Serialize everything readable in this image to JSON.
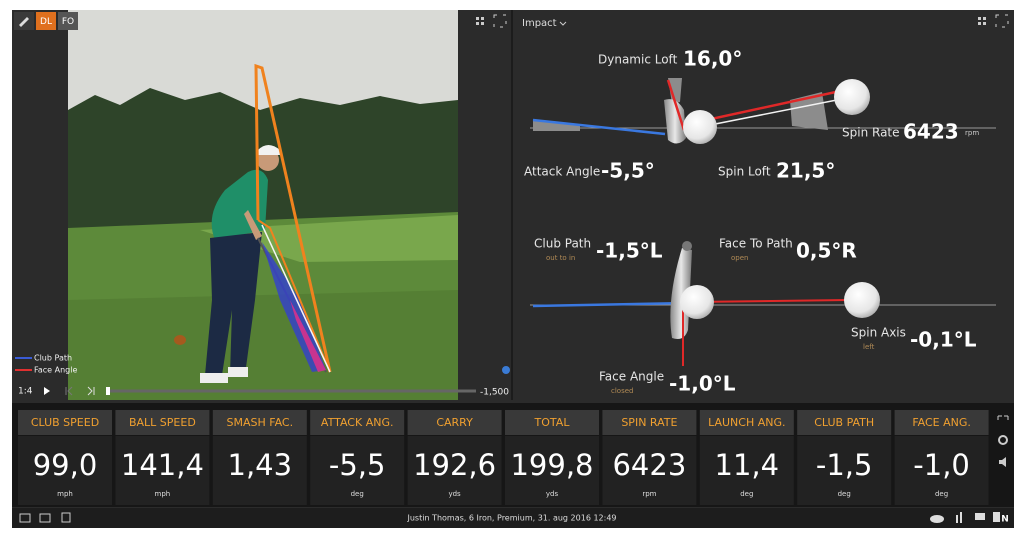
{
  "toolbar": {
    "buttons": [
      "DL",
      "FO"
    ],
    "view": "Impact"
  },
  "video": {
    "legend": [
      "Club Path",
      "Face Angle"
    ],
    "speed": "1:4",
    "time": "-1,500"
  },
  "impact": [
    {
      "name": "Dynamic Loft",
      "value": "16,0°"
    },
    {
      "name": "Spin Rate",
      "value": "6423",
      "unit": "rpm"
    },
    {
      "name": "Attack Angle",
      "value": "-5,5°"
    },
    {
      "name": "Spin Loft",
      "value": "21,5°"
    },
    {
      "name": "Club Path",
      "note": "out to in",
      "value": "-1,5°L"
    },
    {
      "name": "Face To Path",
      "note": "open",
      "value": "0,5°R"
    },
    {
      "name": "Spin Axis",
      "note": "left",
      "value": "-0,1°L"
    },
    {
      "name": "Face Angle",
      "note": "closed",
      "value": "-1,0°L"
    }
  ],
  "tiles": [
    {
      "label": "CLUB SPEED",
      "value": "99,0",
      "unit": "mph"
    },
    {
      "label": "BALL SPEED",
      "value": "141,4",
      "unit": "mph"
    },
    {
      "label": "SMASH FAC.",
      "value": "1,43"
    },
    {
      "label": "ATTACK ANG.",
      "value": "-5,5",
      "unit": "deg"
    },
    {
      "label": "CARRY",
      "value": "192,6",
      "unit": "yds"
    },
    {
      "label": "TOTAL",
      "value": "199,8",
      "unit": "yds"
    },
    {
      "label": "SPIN RATE",
      "value": "6423",
      "unit": "rpm"
    },
    {
      "label": "LAUNCH ANG.",
      "value": "11,4",
      "unit": "deg"
    },
    {
      "label": "CLUB PATH",
      "value": "-1,5",
      "unit": "deg"
    },
    {
      "label": "FACE ANG.",
      "value": "-1,0",
      "unit": "deg"
    }
  ],
  "status_bar": {
    "text": "Justin Thomas, 6 Iron, Premium, 31. aug 2016 12:49",
    "letter": "N"
  }
}
